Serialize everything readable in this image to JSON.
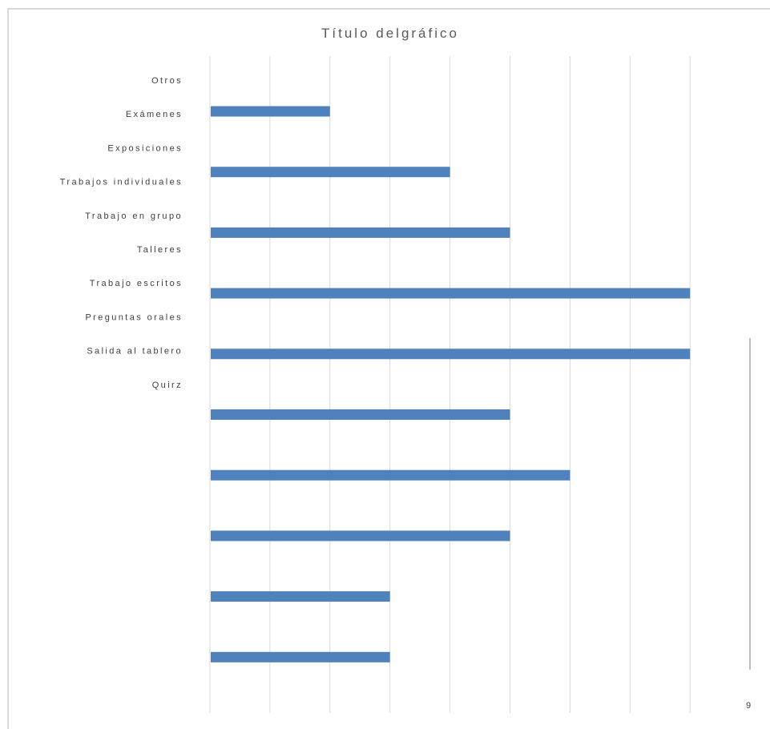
{
  "chart_data": {
    "type": "bar",
    "orientation": "horizontal",
    "title": "Título delgráfico",
    "categories": [
      "Otros",
      "Exámenes",
      "Exposiciones",
      "Trabajos individuales",
      "Trabajo en grupo",
      "Talleres",
      "Trabajo escritos",
      "Preguntas orales",
      "Salida al tablero",
      "Quirz"
    ],
    "values": [
      2,
      4,
      5,
      8,
      8,
      5,
      6,
      5,
      3,
      3
    ],
    "xlim": [
      0,
      9
    ],
    "x_tick_labels": [
      "9"
    ],
    "grid": true,
    "bar_color": "#4f81bd",
    "grid_color": "#d9d9d9"
  }
}
